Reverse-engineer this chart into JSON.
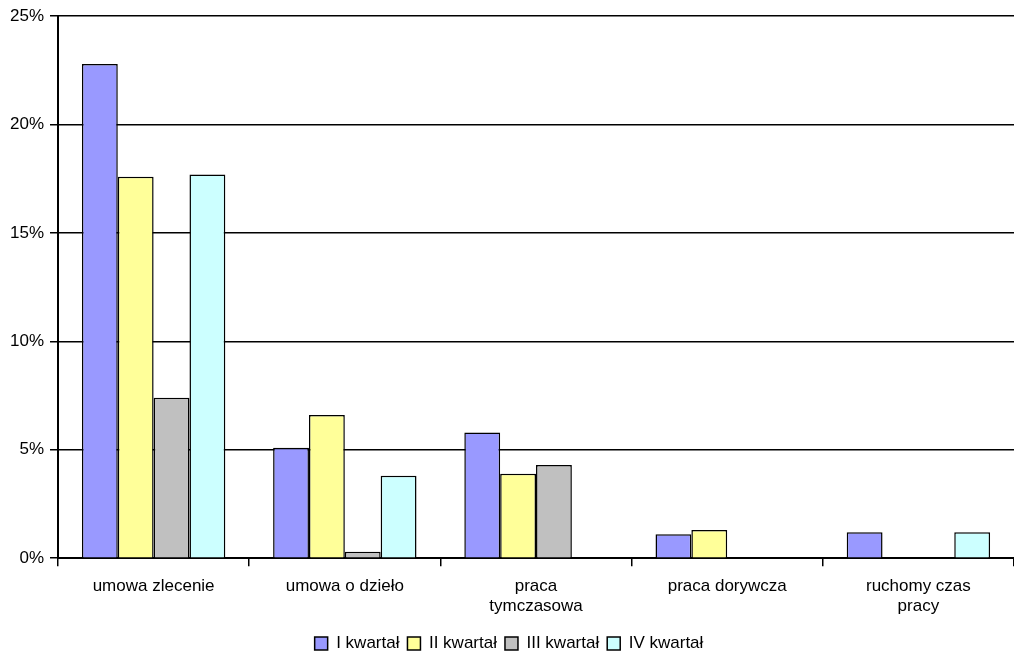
{
  "chart_data": {
    "type": "bar",
    "categories": [
      "umowa zlecenie",
      "umowa o dzieło",
      "praca tymczasowa",
      "praca dorywcza",
      "ruchomy czas pracy"
    ],
    "series": [
      {
        "name": "I kwartał",
        "color": "#9999ff",
        "values": [
          22.8,
          5.1,
          5.8,
          1.1,
          1.2
        ]
      },
      {
        "name": "II kwartał",
        "color": "#ffff99",
        "values": [
          17.6,
          6.6,
          3.9,
          1.3,
          null
        ]
      },
      {
        "name": "III kwartał",
        "color": "#c0c0c0",
        "values": [
          7.4,
          0.3,
          4.3,
          null,
          null
        ]
      },
      {
        "name": "IV kwartał",
        "color": "#ccffff",
        "values": [
          17.7,
          3.8,
          null,
          null,
          1.2
        ]
      }
    ],
    "ylim": [
      0,
      25
    ],
    "yticks": [
      {
        "value": 0,
        "label": "0%"
      },
      {
        "value": 5,
        "label": "5%"
      },
      {
        "value": 10,
        "label": "10%"
      },
      {
        "value": 15,
        "label": "15%"
      },
      {
        "value": 20,
        "label": "20%"
      },
      {
        "value": 25,
        "label": "25%"
      }
    ],
    "grid": "y",
    "legend": "bottom"
  }
}
